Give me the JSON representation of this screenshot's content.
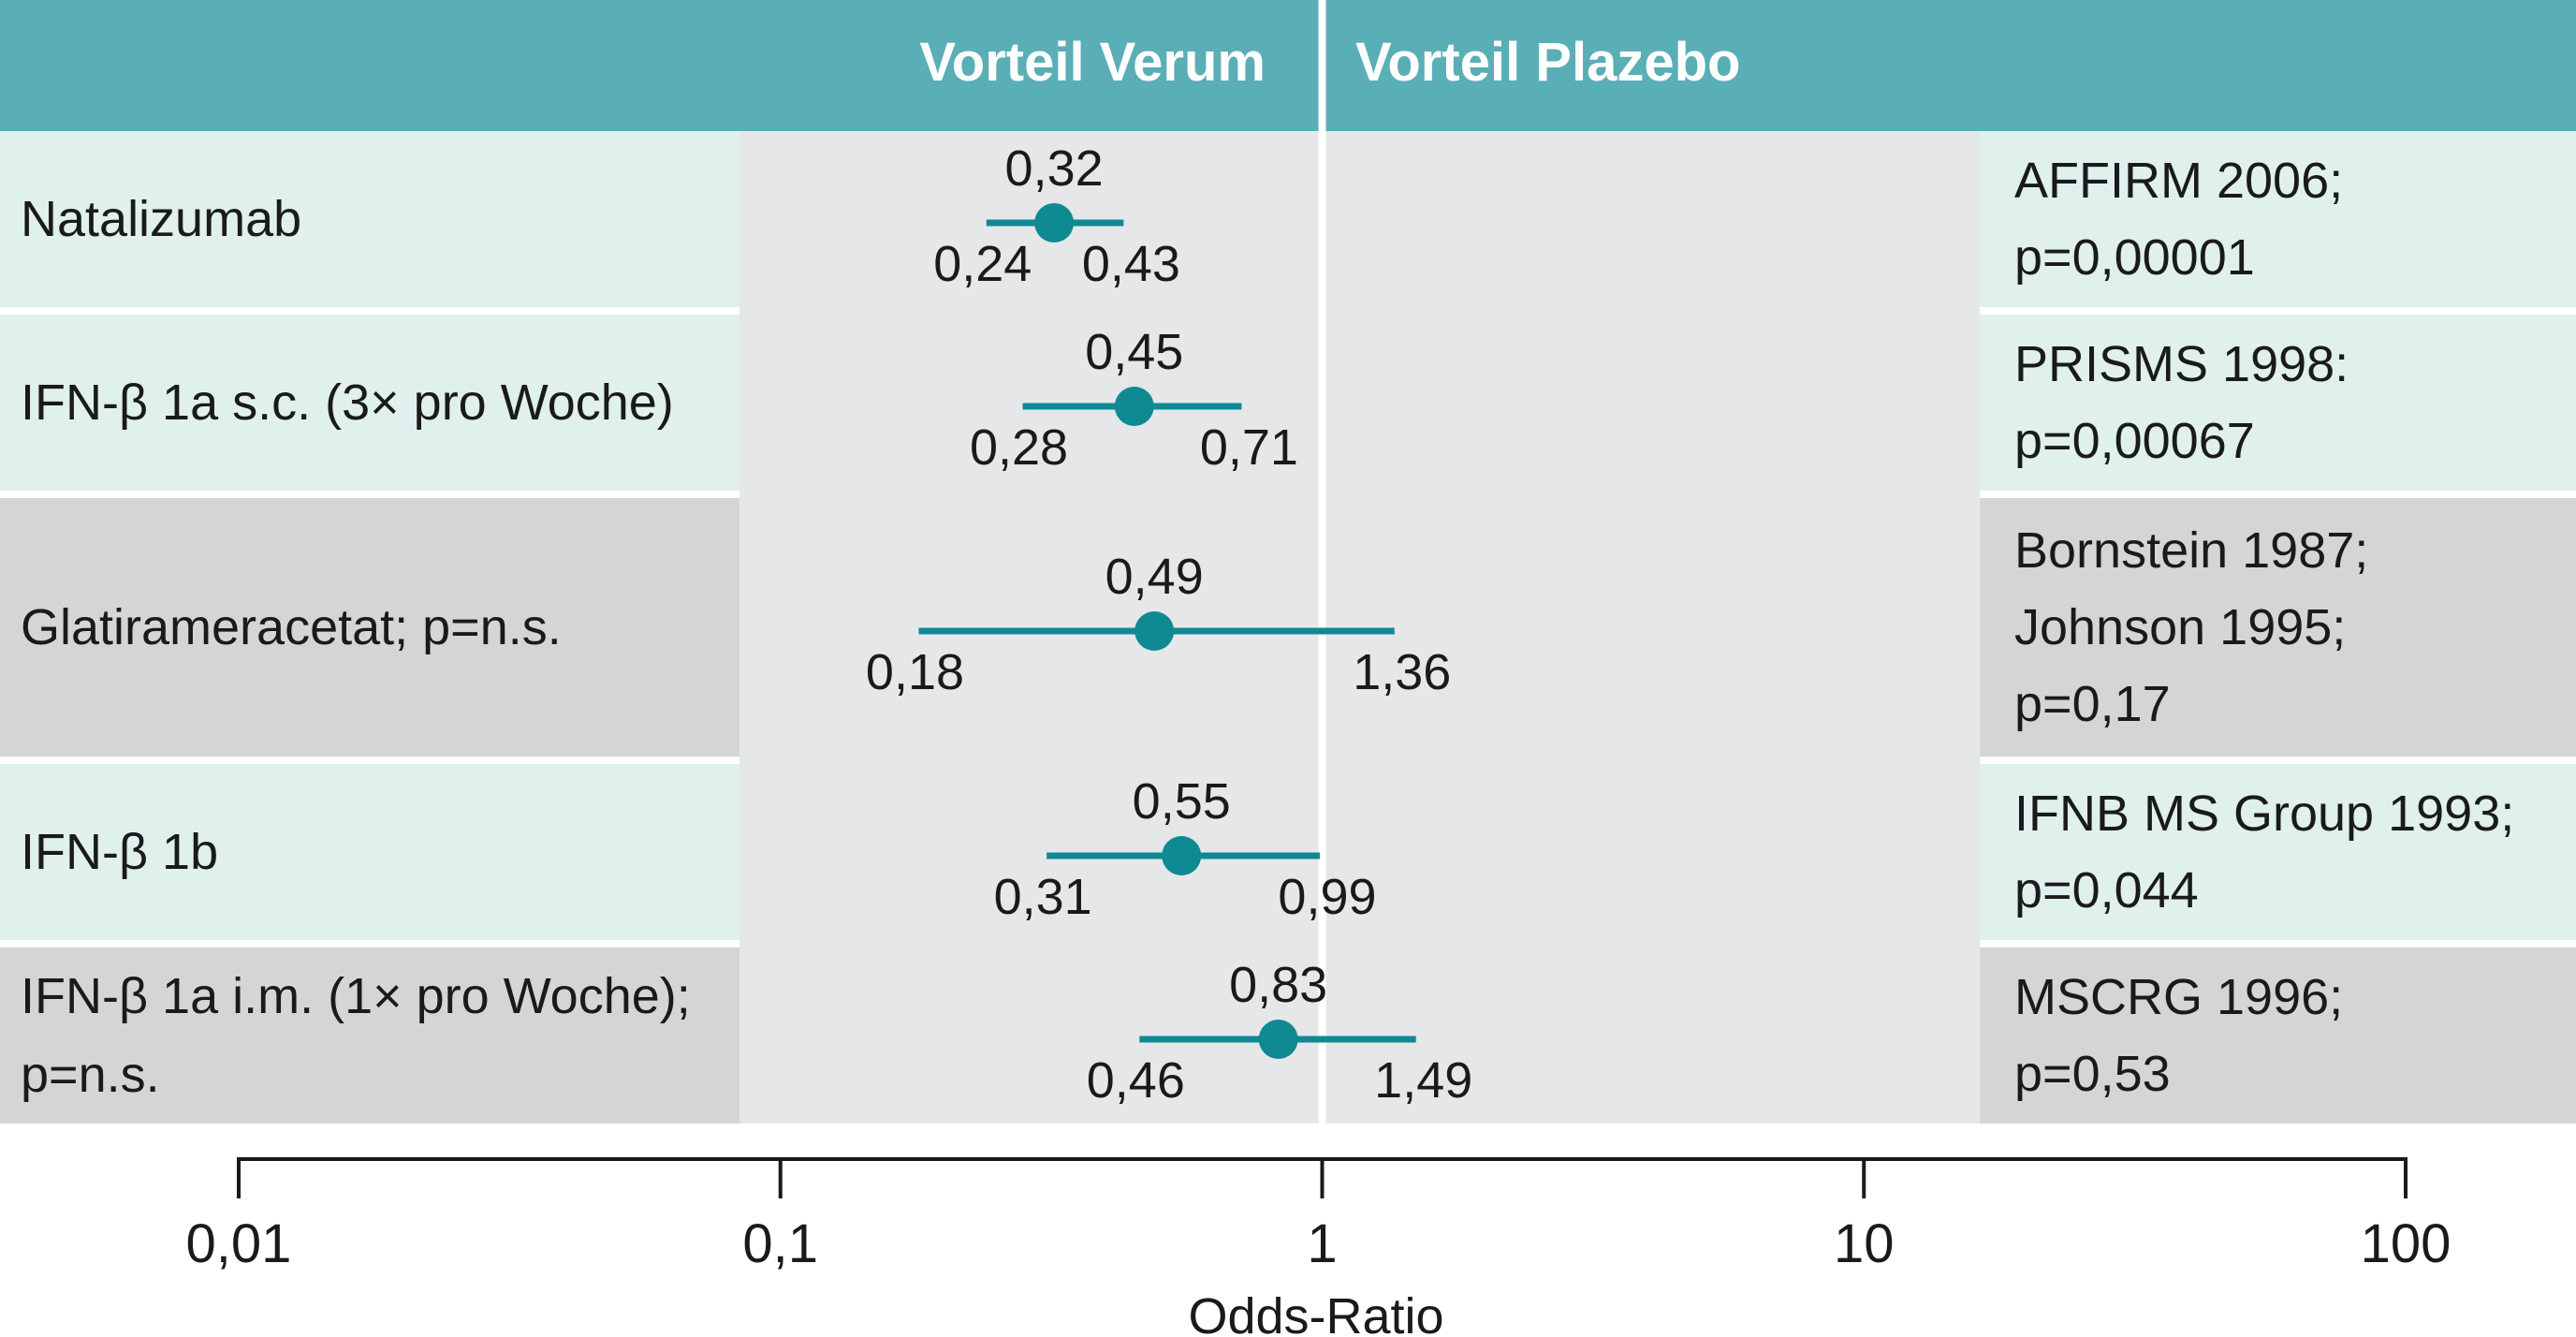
{
  "header": {
    "left_label": "Vorteil Verum",
    "right_label": "Vorteil Plazebo"
  },
  "colors": {
    "header": "#5aaeb6",
    "row_light": "#dff0ed",
    "row_gray": "#d4d5d7",
    "plot_bg": "#e6e7e9",
    "marker": "#0f8a93",
    "text": "#1a1a1a"
  },
  "chart_data": {
    "type": "forest",
    "xscale": "log",
    "xlabel": "Odds-Ratio",
    "xlim": [
      0.01,
      100
    ],
    "reference_line": 1,
    "xticks": [
      {
        "value": 0.01,
        "label": "0,01"
      },
      {
        "value": 0.1,
        "label": "0,1"
      },
      {
        "value": 1,
        "label": "1"
      },
      {
        "value": 10,
        "label": "10"
      },
      {
        "value": 100,
        "label": "100"
      }
    ],
    "rows": [
      {
        "label": [
          "Natalizumab"
        ],
        "shade": "light",
        "or": 0.32,
        "lo": 0.24,
        "hi": 0.43,
        "or_label": "0,32",
        "lo_label": "0,24",
        "hi_label": "0,43",
        "study": [
          "AFFIRM 2006;",
          "p=0,00001"
        ]
      },
      {
        "label": [
          "IFN-β 1a s.c. (3× pro Woche)"
        ],
        "shade": "light",
        "or": 0.45,
        "lo": 0.28,
        "hi": 0.71,
        "or_label": "0,45",
        "lo_label": "0,28",
        "hi_label": "0,71",
        "study": [
          "PRISMS 1998:",
          "p=0,00067"
        ]
      },
      {
        "label": [
          "Glatirameracetat; p=n.s."
        ],
        "shade": "gray",
        "or": 0.49,
        "lo": 0.18,
        "hi": 1.36,
        "or_label": "0,49",
        "lo_label": "0,18",
        "hi_label": "1,36",
        "study": [
          "Bornstein 1987;",
          "Johnson 1995;",
          "p=0,17"
        ]
      },
      {
        "label": [
          "IFN-β 1b"
        ],
        "shade": "light",
        "or": 0.55,
        "lo": 0.31,
        "hi": 0.99,
        "or_label": "0,55",
        "lo_label": "0,31",
        "hi_label": "0,99",
        "study": [
          "IFNB MS Group 1993;",
          "p=0,044"
        ]
      },
      {
        "label": [
          "IFN-β 1a i.m. (1× pro Woche);",
          "p=n.s."
        ],
        "shade": "gray",
        "or": 0.83,
        "lo": 0.46,
        "hi": 1.49,
        "or_label": "0,83",
        "lo_label": "0,46",
        "hi_label": "1,49",
        "study": [
          "MSCRG 1996;",
          "p=0,53"
        ]
      }
    ]
  }
}
